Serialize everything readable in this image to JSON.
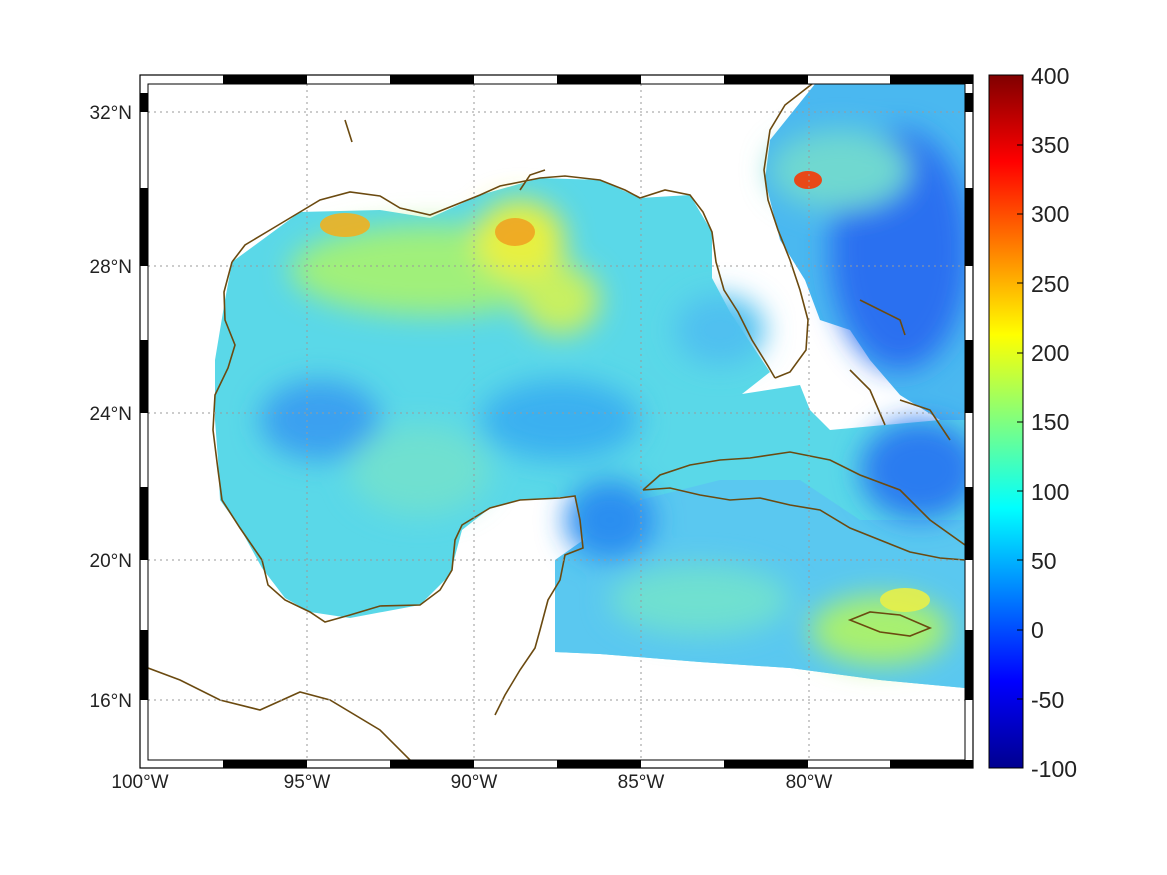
{
  "map": {
    "lat_labels": [
      "32°N",
      "28°N",
      "24°N",
      "20°N",
      "16°N"
    ],
    "lat_values": [
      32,
      28,
      24,
      20,
      16
    ],
    "lon_labels": [
      "100°W",
      "95°W",
      "90°W",
      "85°W",
      "80°W"
    ],
    "lon_values": [
      -100,
      -95,
      -90,
      -85,
      -80
    ],
    "extent": {
      "lon_min": -100,
      "lon_max": -75,
      "lat_min": 14.3,
      "lat_max": 32.9
    },
    "grid": true,
    "grid_style": "dotted",
    "frame_style": "black-white-checkered",
    "coastline_color": "#6b4a10",
    "land_color": "#ffffff"
  },
  "colorbar": {
    "labels": [
      "400",
      "350",
      "300",
      "250",
      "200",
      "150",
      "100",
      "50",
      "0",
      "-50",
      "-100"
    ],
    "values": [
      400,
      350,
      300,
      250,
      200,
      150,
      100,
      50,
      0,
      -50,
      -100
    ],
    "min": -100,
    "max": 400,
    "colormap": "jet",
    "placement": "right"
  }
}
